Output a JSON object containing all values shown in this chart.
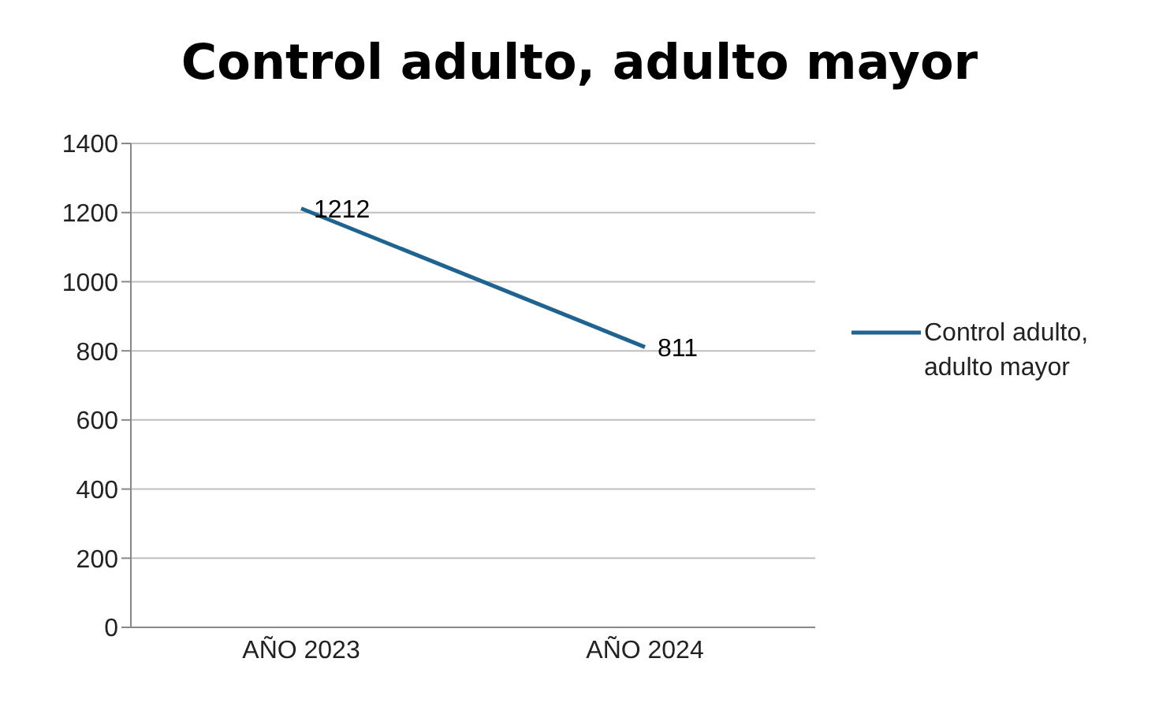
{
  "chart_data": {
    "type": "line",
    "title": "Control adulto, adulto mayor",
    "categories": [
      "AÑO 2023",
      "AÑO 2024"
    ],
    "series": [
      {
        "name": "Control adulto, adulto mayor",
        "color": "#1f6391",
        "values": [
          1212,
          811
        ]
      }
    ],
    "ylim": [
      0,
      1400
    ],
    "yticks": [
      0,
      200,
      400,
      600,
      800,
      1000,
      1200,
      1400
    ],
    "grid": "y",
    "legend": "right",
    "data_labels": true,
    "marker": "none"
  }
}
